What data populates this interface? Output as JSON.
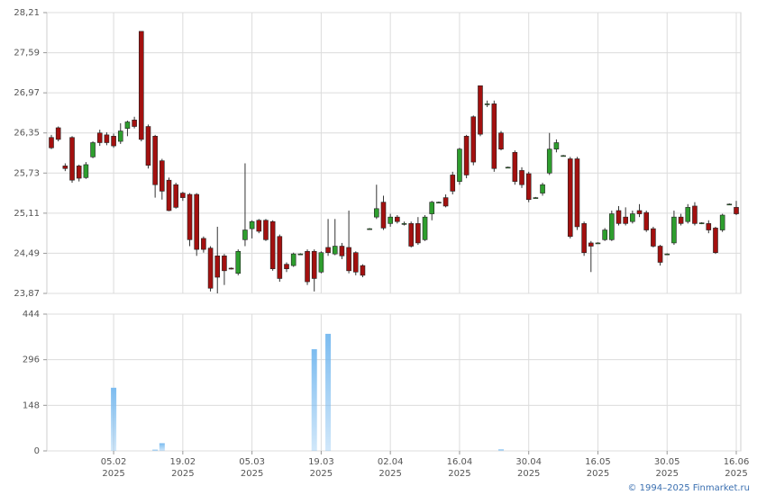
{
  "chart_data": {
    "type": "candlestick",
    "x": [
      "2025-01-23",
      "2025-01-24",
      "2025-01-27",
      "2025-01-28",
      "2025-01-29",
      "2025-01-30",
      "2025-01-31",
      "2025-02-03",
      "2025-02-04",
      "2025-02-05",
      "2025-02-06",
      "2025-02-07",
      "2025-02-10",
      "2025-02-11",
      "2025-02-12",
      "2025-02-13",
      "2025-02-14",
      "2025-02-17",
      "2025-02-18",
      "2025-02-19",
      "2025-02-20",
      "2025-02-21",
      "2025-02-24",
      "2025-02-25",
      "2025-02-26",
      "2025-02-27",
      "2025-02-28",
      "2025-03-03",
      "2025-03-04",
      "2025-03-05",
      "2025-03-06",
      "2025-03-07",
      "2025-03-10",
      "2025-03-11",
      "2025-03-12",
      "2025-03-13",
      "2025-03-14",
      "2025-03-17",
      "2025-03-18",
      "2025-03-19",
      "2025-03-20",
      "2025-03-21",
      "2025-03-24",
      "2025-03-25",
      "2025-03-26",
      "2025-03-27",
      "2025-03-28",
      "2025-03-31",
      "2025-04-01",
      "2025-04-02",
      "2025-04-03",
      "2025-04-04",
      "2025-04-07",
      "2025-04-08",
      "2025-04-09",
      "2025-04-10",
      "2025-04-11",
      "2025-04-14",
      "2025-04-15",
      "2025-04-16",
      "2025-04-17",
      "2025-04-18",
      "2025-04-21",
      "2025-04-22",
      "2025-04-23",
      "2025-04-24",
      "2025-04-25",
      "2025-04-28",
      "2025-04-29",
      "2025-04-30",
      "2025-05-05",
      "2025-05-06",
      "2025-05-07",
      "2025-05-08",
      "2025-05-09",
      "2025-05-12",
      "2025-05-13",
      "2025-05-14",
      "2025-05-15",
      "2025-05-16",
      "2025-05-19",
      "2025-05-20",
      "2025-05-21",
      "2025-05-22",
      "2025-05-23",
      "2025-05-26",
      "2025-05-27",
      "2025-05-28",
      "2025-05-29",
      "2025-05-30",
      "2025-06-02",
      "2025-06-03",
      "2025-06-04",
      "2025-06-05",
      "2025-06-06",
      "2025-06-09",
      "2025-06-10",
      "2025-06-11",
      "2025-06-13",
      "2025-06-16"
    ],
    "ohlc": [
      [
        26.28,
        26.32,
        26.1,
        26.12
      ],
      [
        26.43,
        26.45,
        26.22,
        26.25
      ],
      [
        25.84,
        25.88,
        25.76,
        25.8
      ],
      [
        26.28,
        26.3,
        25.58,
        25.62
      ],
      [
        25.84,
        25.86,
        25.6,
        25.65
      ],
      [
        25.66,
        25.9,
        25.64,
        25.86
      ],
      [
        25.98,
        26.22,
        25.96,
        26.2
      ],
      [
        26.35,
        26.4,
        26.15,
        26.2
      ],
      [
        26.32,
        26.36,
        26.16,
        26.2
      ],
      [
        26.3,
        26.34,
        26.12,
        26.15
      ],
      [
        26.22,
        26.5,
        26.18,
        26.38
      ],
      [
        26.42,
        26.54,
        26.3,
        26.52
      ],
      [
        26.55,
        26.6,
        26.42,
        26.45
      ],
      [
        27.92,
        27.92,
        26.22,
        26.25
      ],
      [
        26.45,
        26.48,
        25.8,
        25.85
      ],
      [
        26.3,
        26.32,
        25.35,
        25.55
      ],
      [
        25.92,
        25.95,
        25.32,
        25.45
      ],
      [
        25.62,
        25.66,
        25.14,
        25.15
      ],
      [
        25.55,
        25.58,
        25.18,
        25.2
      ],
      [
        25.42,
        25.44,
        25.3,
        25.35
      ],
      [
        25.4,
        25.42,
        24.6,
        24.7
      ],
      [
        25.4,
        25.42,
        24.45,
        24.55
      ],
      [
        24.72,
        24.75,
        24.5,
        24.55
      ],
      [
        24.57,
        24.6,
        23.9,
        23.95
      ],
      [
        24.45,
        24.9,
        23.87,
        24.12
      ],
      [
        24.45,
        24.48,
        24.0,
        24.22
      ],
      [
        24.26,
        24.27,
        24.24,
        24.25
      ],
      [
        24.18,
        24.55,
        24.15,
        24.52
      ],
      [
        24.7,
        25.88,
        24.6,
        24.85
      ],
      [
        24.87,
        25.0,
        24.72,
        24.98
      ],
      [
        25.0,
        25.02,
        24.8,
        24.83
      ],
      [
        25.0,
        25.02,
        24.68,
        24.7
      ],
      [
        24.98,
        25.0,
        24.22,
        24.25
      ],
      [
        24.75,
        24.78,
        24.05,
        24.1
      ],
      [
        24.32,
        24.35,
        24.2,
        24.25
      ],
      [
        24.3,
        24.5,
        24.28,
        24.48
      ],
      [
        24.48,
        24.49,
        24.47,
        24.48
      ],
      [
        24.52,
        24.55,
        24.0,
        24.05
      ],
      [
        24.52,
        24.55,
        23.9,
        24.1
      ],
      [
        24.2,
        24.52,
        24.18,
        24.5
      ],
      [
        24.58,
        25.02,
        24.45,
        24.5
      ],
      [
        24.48,
        25.02,
        24.46,
        24.6
      ],
      [
        24.6,
        24.65,
        24.4,
        24.45
      ],
      [
        24.58,
        25.15,
        24.18,
        24.22
      ],
      [
        24.5,
        24.52,
        24.15,
        24.2
      ],
      [
        24.3,
        24.32,
        24.12,
        24.15
      ],
      [
        24.87,
        24.88,
        24.86,
        24.87
      ],
      [
        25.05,
        25.55,
        25.02,
        25.18
      ],
      [
        25.28,
        25.38,
        24.85,
        24.88
      ],
      [
        24.95,
        25.1,
        24.9,
        25.05
      ],
      [
        25.05,
        25.08,
        24.95,
        24.98
      ],
      [
        24.95,
        24.98,
        24.92,
        24.95
      ],
      [
        24.95,
        24.98,
        24.58,
        24.6
      ],
      [
        24.95,
        25.05,
        24.62,
        24.65
      ],
      [
        24.7,
        25.08,
        24.68,
        25.05
      ],
      [
        25.1,
        25.3,
        25.0,
        25.28
      ],
      [
        25.28,
        25.29,
        25.27,
        25.28
      ],
      [
        25.35,
        25.4,
        25.2,
        25.22
      ],
      [
        25.7,
        25.75,
        25.4,
        25.45
      ],
      [
        25.6,
        26.12,
        25.55,
        26.1
      ],
      [
        26.3,
        26.32,
        25.65,
        25.7
      ],
      [
        26.6,
        26.62,
        25.85,
        25.9
      ],
      [
        27.08,
        27.08,
        26.3,
        26.33
      ],
      [
        26.8,
        26.85,
        26.75,
        26.8
      ],
      [
        26.8,
        26.85,
        25.75,
        25.8
      ],
      [
        26.35,
        26.38,
        26.08,
        26.1
      ],
      [
        25.82,
        25.83,
        25.81,
        25.82
      ],
      [
        26.05,
        26.08,
        25.55,
        25.6
      ],
      [
        25.77,
        25.82,
        25.5,
        25.55
      ],
      [
        25.72,
        25.75,
        25.28,
        25.32
      ],
      [
        25.35,
        25.36,
        25.34,
        25.35
      ],
      [
        25.42,
        25.58,
        25.38,
        25.55
      ],
      [
        25.73,
        26.35,
        25.7,
        26.1
      ],
      [
        26.1,
        26.25,
        26.05,
        26.2
      ],
      [
        26.0,
        26.01,
        25.99,
        26.0
      ],
      [
        25.95,
        25.98,
        24.72,
        24.75
      ],
      [
        25.95,
        25.98,
        24.85,
        24.9
      ],
      [
        24.95,
        24.98,
        24.45,
        24.5
      ],
      [
        24.65,
        24.68,
        24.2,
        24.6
      ],
      [
        24.65,
        24.66,
        24.64,
        24.65
      ],
      [
        24.7,
        24.88,
        24.68,
        24.85
      ],
      [
        24.7,
        25.15,
        24.68,
        25.1
      ],
      [
        25.15,
        25.22,
        24.92,
        24.95
      ],
      [
        25.05,
        25.2,
        24.92,
        24.95
      ],
      [
        24.98,
        25.15,
        24.95,
        25.1
      ],
      [
        25.15,
        25.25,
        25.05,
        25.1
      ],
      [
        25.12,
        25.15,
        24.82,
        24.85
      ],
      [
        24.87,
        24.9,
        24.58,
        24.6
      ],
      [
        24.6,
        24.62,
        24.3,
        24.35
      ],
      [
        24.48,
        24.49,
        24.47,
        24.48
      ],
      [
        24.65,
        25.15,
        24.62,
        25.05
      ],
      [
        25.05,
        25.1,
        24.92,
        24.95
      ],
      [
        24.98,
        25.25,
        24.95,
        25.2
      ],
      [
        25.22,
        25.28,
        24.92,
        24.95
      ],
      [
        24.96,
        24.97,
        24.94,
        24.96
      ],
      [
        24.95,
        25.0,
        24.8,
        24.85
      ],
      [
        24.88,
        24.9,
        24.48,
        24.5
      ],
      [
        24.85,
        25.1,
        24.82,
        25.08
      ],
      [
        25.25,
        25.26,
        25.24,
        25.25
      ],
      [
        25.2,
        25.3,
        25.08,
        25.1
      ]
    ],
    "volume": [
      0,
      0,
      0,
      0,
      0,
      0,
      0,
      0,
      0,
      205,
      0,
      0,
      0,
      0,
      0,
      4,
      25,
      0,
      0,
      0,
      0,
      0,
      0,
      0,
      0,
      0,
      0,
      0,
      0,
      0,
      0,
      0,
      0,
      0,
      0,
      0,
      0,
      0,
      330,
      0,
      380,
      0,
      0,
      0,
      0,
      0,
      0,
      0,
      0,
      0,
      0,
      0,
      0,
      0,
      0,
      0,
      0,
      0,
      0,
      0,
      0,
      0,
      0,
      0,
      0,
      5,
      0,
      0,
      0,
      0,
      0,
      0,
      0,
      0,
      0,
      0,
      0,
      0,
      0,
      0,
      0,
      0,
      0,
      0,
      0,
      0,
      0,
      0,
      0,
      0,
      0,
      0,
      0,
      0,
      0,
      0,
      0,
      0,
      0,
      0
    ],
    "up_color": "#2e9e2e",
    "down_color": "#a3100f",
    "volume_color": "#7cbcf0",
    "ylim": [
      23.87,
      28.21
    ],
    "yticks": [
      {
        "value": 23.87,
        "label": "23,87"
      },
      {
        "value": 24.49,
        "label": "24,49"
      },
      {
        "value": 25.11,
        "label": "25,11"
      },
      {
        "value": 25.73,
        "label": "25,73"
      },
      {
        "value": 26.35,
        "label": "26,35"
      },
      {
        "value": 26.97,
        "label": "26,97"
      },
      {
        "value": 27.59,
        "label": "27,59"
      },
      {
        "value": 28.21,
        "label": "28,21"
      }
    ],
    "y2lim": [
      0,
      444
    ],
    "y2ticks": [
      0,
      148,
      296,
      444
    ],
    "xticks": [
      {
        "value": "2025-02-05",
        "label": "05.02",
        "year": "2025"
      },
      {
        "value": "2025-02-19",
        "label": "19.02",
        "year": "2025"
      },
      {
        "value": "2025-03-05",
        "label": "05.03",
        "year": "2025"
      },
      {
        "value": "2025-03-19",
        "label": "19.03",
        "year": "2025"
      },
      {
        "value": "2025-04-02",
        "label": "02.04",
        "year": "2025"
      },
      {
        "value": "2025-04-16",
        "label": "16.04",
        "year": "2025"
      },
      {
        "value": "2025-04-30",
        "label": "30.04",
        "year": "2025"
      },
      {
        "value": "2025-05-16",
        "label": "16.05",
        "year": "2025"
      },
      {
        "value": "2025-05-30",
        "label": "30.05",
        "year": "2025"
      },
      {
        "value": "2025-06-16",
        "label": "16.06",
        "year": "2025"
      }
    ],
    "grid": true,
    "footer": "© 1994–2025 Finmarket.ru"
  }
}
